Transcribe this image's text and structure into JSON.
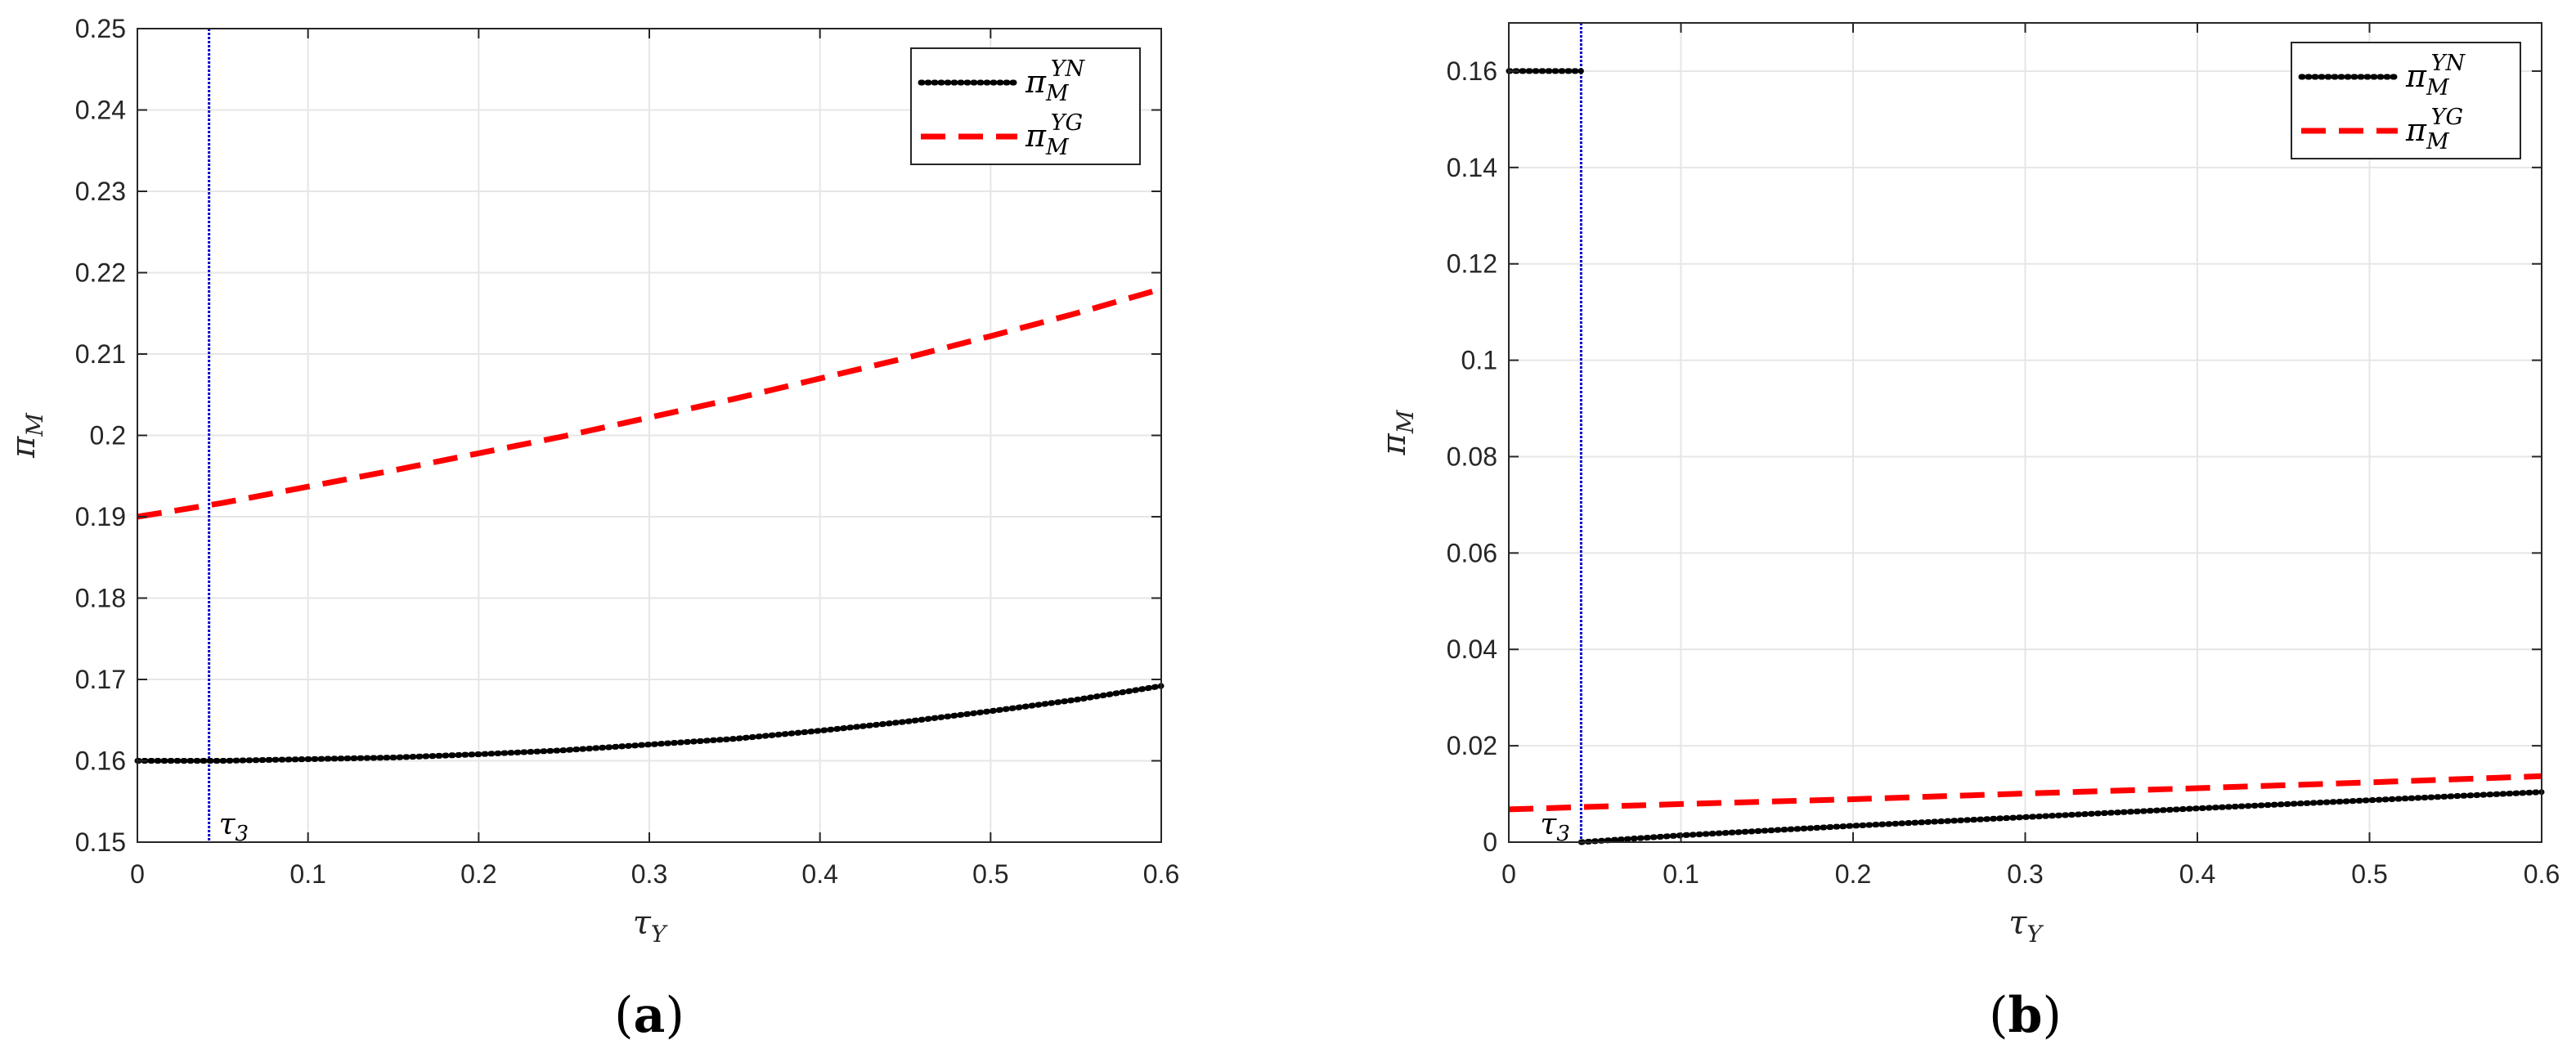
{
  "chart_data": [
    {
      "type": "line",
      "panel_label_letter": "a",
      "xlabel": {
        "base": "τ",
        "sub": "Y"
      },
      "ylabel": {
        "base": "π",
        "sub": "M"
      },
      "xlim": [
        0,
        0.6
      ],
      "ylim": [
        0.15,
        0.25
      ],
      "xticks": [
        "0",
        "0.1",
        "0.2",
        "0.3",
        "0.4",
        "0.5",
        "0.6"
      ],
      "yticks": [
        "0.15",
        "0.16",
        "0.17",
        "0.18",
        "0.19",
        "0.2",
        "0.21",
        "0.22",
        "0.23",
        "0.24",
        "0.25"
      ],
      "grid": true,
      "legend_position": "top-right",
      "vline": {
        "x": 0.042,
        "label_base": "τ",
        "label_sub": "3",
        "color": "#0000cc"
      },
      "series": [
        {
          "name": {
            "base": "π",
            "sub": "M",
            "sup": "YN"
          },
          "style": "dotted",
          "color": "#000000",
          "x": [
            0,
            0.05,
            0.1,
            0.15,
            0.2,
            0.25,
            0.3,
            0.35,
            0.4,
            0.45,
            0.5,
            0.55,
            0.6
          ],
          "values": [
            0.16,
            0.16,
            0.1602,
            0.1604,
            0.1608,
            0.1613,
            0.162,
            0.1627,
            0.1637,
            0.1648,
            0.1661,
            0.1675,
            0.1692
          ]
        },
        {
          "name": {
            "base": "π",
            "sub": "M",
            "sup": "YG"
          },
          "style": "dashed",
          "color": "#ff0000",
          "x": [
            0,
            0.05,
            0.1,
            0.15,
            0.2,
            0.25,
            0.3,
            0.35,
            0.4,
            0.45,
            0.5,
            0.55,
            0.6
          ],
          "values": [
            0.19,
            0.1917,
            0.1937,
            0.1957,
            0.1978,
            0.1999,
            0.2022,
            0.2045,
            0.207,
            0.2095,
            0.2122,
            0.215,
            0.218
          ]
        }
      ]
    },
    {
      "type": "line",
      "panel_label_letter": "b",
      "xlabel": {
        "base": "τ",
        "sub": "Y"
      },
      "ylabel": {
        "base": "π",
        "sub": "M"
      },
      "xlim": [
        0,
        0.6
      ],
      "ylim": [
        0,
        0.17
      ],
      "xticks": [
        "0",
        "0.1",
        "0.2",
        "0.3",
        "0.4",
        "0.5",
        "0.6"
      ],
      "yticks": [
        "0",
        "0.02",
        "0.04",
        "0.06",
        "0.08",
        "0.1",
        "0.12",
        "0.14",
        "0.16"
      ],
      "grid": true,
      "legend_position": "top-right",
      "vline": {
        "x": 0.042,
        "label_base": "τ",
        "label_sub": "3",
        "color": "#0000cc"
      },
      "series": [
        {
          "name": {
            "base": "π",
            "sub": "M",
            "sup": "YN"
          },
          "style": "dotted",
          "color": "#000000",
          "segments": [
            {
              "x": [
                0,
                0.042
              ],
              "values": [
                0.16,
                0.16
              ]
            },
            {
              "x": [
                0.042,
                0.1,
                0.2,
                0.3,
                0.4,
                0.5,
                0.6
              ],
              "values": [
                0,
                0.0014,
                0.0034,
                0.0052,
                0.007,
                0.0087,
                0.0104
              ]
            }
          ]
        },
        {
          "name": {
            "base": "π",
            "sub": "M",
            "sup": "YG"
          },
          "style": "dashed",
          "color": "#ff0000",
          "segments": [
            {
              "x": [
                0,
                0.1,
                0.2,
                0.3,
                0.4,
                0.5,
                0.6
              ],
              "values": [
                0.0068,
                0.0079,
                0.0089,
                0.0101,
                0.0112,
                0.0124,
                0.0137
              ]
            }
          ]
        }
      ]
    }
  ]
}
